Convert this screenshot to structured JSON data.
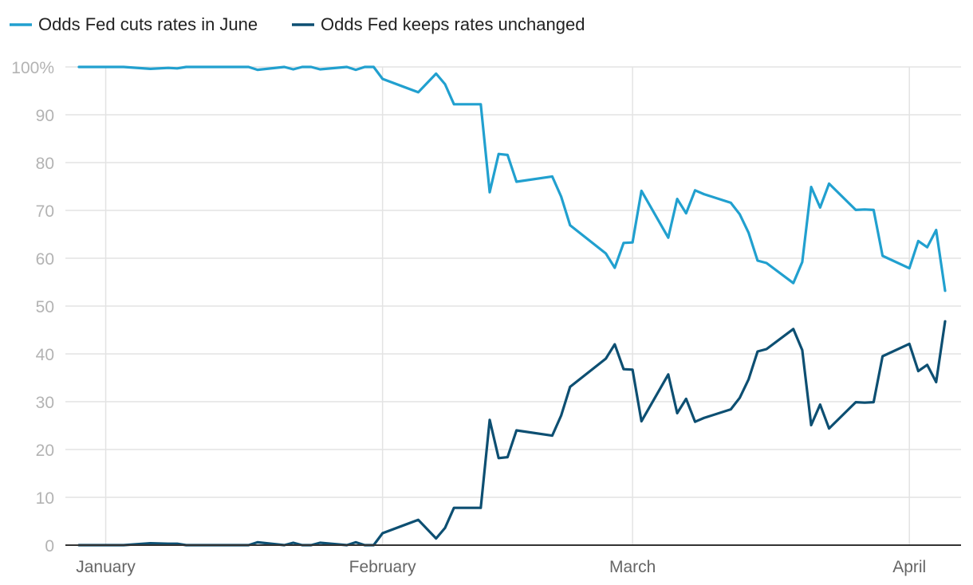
{
  "chart_data": {
    "type": "line",
    "title": "",
    "xlabel": "",
    "ylabel": "",
    "ylim": [
      0,
      100
    ],
    "y_ticks": [
      {
        "value": 100,
        "label": "100%"
      },
      {
        "value": 90,
        "label": "90"
      },
      {
        "value": 80,
        "label": "80"
      },
      {
        "value": 70,
        "label": "70"
      },
      {
        "value": 60,
        "label": "60"
      },
      {
        "value": 50,
        "label": "50"
      },
      {
        "value": 40,
        "label": "40"
      },
      {
        "value": 30,
        "label": "30"
      },
      {
        "value": 20,
        "label": "20"
      },
      {
        "value": 10,
        "label": "10"
      },
      {
        "value": 0,
        "label": "0"
      }
    ],
    "x_range": [
      "2024-12-29",
      "2025-04-12"
    ],
    "x_ticks": [
      {
        "date": "2025-01-01",
        "label": "January"
      },
      {
        "date": "2025-02-01",
        "label": "February"
      },
      {
        "date": "2025-03-01",
        "label": "March"
      },
      {
        "date": "2025-04-01",
        "label": "April"
      }
    ],
    "grid": true,
    "legend_position": "top-left",
    "series": [
      {
        "name": "Odds Fed cuts rates in June",
        "color": "#21a0cf",
        "points": [
          [
            "2024-12-29",
            100
          ],
          [
            "2025-01-02",
            100
          ],
          [
            "2025-01-03",
            100
          ],
          [
            "2025-01-06",
            99.6
          ],
          [
            "2025-01-08",
            99.8
          ],
          [
            "2025-01-09",
            99.7
          ],
          [
            "2025-01-10",
            100
          ],
          [
            "2025-01-17",
            100
          ],
          [
            "2025-01-18",
            99.4
          ],
          [
            "2025-01-21",
            100
          ],
          [
            "2025-01-22",
            99.5
          ],
          [
            "2025-01-23",
            100
          ],
          [
            "2025-01-24",
            100
          ],
          [
            "2025-01-25",
            99.5
          ],
          [
            "2025-01-28",
            100
          ],
          [
            "2025-01-29",
            99.4
          ],
          [
            "2025-01-30",
            100
          ],
          [
            "2025-01-31",
            100
          ],
          [
            "2025-02-01",
            97.5
          ],
          [
            "2025-02-05",
            94.7
          ],
          [
            "2025-02-07",
            98.6
          ],
          [
            "2025-02-08",
            96.4
          ],
          [
            "2025-02-09",
            92.2
          ],
          [
            "2025-02-12",
            92.2
          ],
          [
            "2025-02-13",
            73.8
          ],
          [
            "2025-02-14",
            81.8
          ],
          [
            "2025-02-15",
            81.6
          ],
          [
            "2025-02-16",
            76
          ],
          [
            "2025-02-20",
            77.1
          ],
          [
            "2025-02-21",
            72.9
          ],
          [
            "2025-02-22",
            66.9
          ],
          [
            "2025-02-26",
            61
          ],
          [
            "2025-02-27",
            58
          ],
          [
            "2025-02-28",
            63.2
          ],
          [
            "2025-03-01",
            63.3
          ],
          [
            "2025-03-02",
            74.1
          ],
          [
            "2025-03-05",
            64.3
          ],
          [
            "2025-03-06",
            72.4
          ],
          [
            "2025-03-07",
            69.4
          ],
          [
            "2025-03-08",
            74.2
          ],
          [
            "2025-03-09",
            73.4
          ],
          [
            "2025-03-12",
            71.6
          ],
          [
            "2025-03-13",
            69.2
          ],
          [
            "2025-03-14",
            65.3
          ],
          [
            "2025-03-15",
            59.5
          ],
          [
            "2025-03-16",
            59
          ],
          [
            "2025-03-19",
            54.8
          ],
          [
            "2025-03-20",
            59.2
          ],
          [
            "2025-03-21",
            74.9
          ],
          [
            "2025-03-22",
            70.6
          ],
          [
            "2025-03-23",
            75.6
          ],
          [
            "2025-03-26",
            70.1
          ],
          [
            "2025-03-27",
            70.2
          ],
          [
            "2025-03-28",
            70.1
          ],
          [
            "2025-03-29",
            60.5
          ],
          [
            "2025-04-01",
            57.9
          ],
          [
            "2025-04-02",
            63.6
          ],
          [
            "2025-04-03",
            62.3
          ],
          [
            "2025-04-04",
            65.9
          ],
          [
            "2025-04-05",
            53.2
          ]
        ]
      },
      {
        "name": "Odds Fed keeps rates unchanged",
        "color": "#0d4f72",
        "points": [
          [
            "2024-12-29",
            0
          ],
          [
            "2025-01-02",
            0
          ],
          [
            "2025-01-03",
            0
          ],
          [
            "2025-01-06",
            0.4
          ],
          [
            "2025-01-08",
            0.3
          ],
          [
            "2025-01-09",
            0.3
          ],
          [
            "2025-01-10",
            0
          ],
          [
            "2025-01-17",
            0
          ],
          [
            "2025-01-18",
            0.6
          ],
          [
            "2025-01-21",
            0
          ],
          [
            "2025-01-22",
            0.5
          ],
          [
            "2025-01-23",
            0
          ],
          [
            "2025-01-24",
            0
          ],
          [
            "2025-01-25",
            0.5
          ],
          [
            "2025-01-28",
            0
          ],
          [
            "2025-01-29",
            0.6
          ],
          [
            "2025-01-30",
            0
          ],
          [
            "2025-01-31",
            0
          ],
          [
            "2025-02-01",
            2.5
          ],
          [
            "2025-02-05",
            5.3
          ],
          [
            "2025-02-07",
            1.4
          ],
          [
            "2025-02-08",
            3.6
          ],
          [
            "2025-02-09",
            7.8
          ],
          [
            "2025-02-12",
            7.8
          ],
          [
            "2025-02-13",
            26.2
          ],
          [
            "2025-02-14",
            18.2
          ],
          [
            "2025-02-15",
            18.4
          ],
          [
            "2025-02-16",
            24
          ],
          [
            "2025-02-20",
            22.9
          ],
          [
            "2025-02-21",
            27.1
          ],
          [
            "2025-02-22",
            33.1
          ],
          [
            "2025-02-26",
            39
          ],
          [
            "2025-02-27",
            42
          ],
          [
            "2025-02-28",
            36.8
          ],
          [
            "2025-03-01",
            36.7
          ],
          [
            "2025-03-02",
            25.9
          ],
          [
            "2025-03-05",
            35.7
          ],
          [
            "2025-03-06",
            27.6
          ],
          [
            "2025-03-07",
            30.6
          ],
          [
            "2025-03-08",
            25.8
          ],
          [
            "2025-03-09",
            26.6
          ],
          [
            "2025-03-12",
            28.4
          ],
          [
            "2025-03-13",
            30.8
          ],
          [
            "2025-03-14",
            34.7
          ],
          [
            "2025-03-15",
            40.5
          ],
          [
            "2025-03-16",
            41
          ],
          [
            "2025-03-19",
            45.2
          ],
          [
            "2025-03-20",
            40.8
          ],
          [
            "2025-03-21",
            25.1
          ],
          [
            "2025-03-22",
            29.4
          ],
          [
            "2025-03-23",
            24.4
          ],
          [
            "2025-03-26",
            29.9
          ],
          [
            "2025-03-27",
            29.8
          ],
          [
            "2025-03-28",
            29.9
          ],
          [
            "2025-03-29",
            39.5
          ],
          [
            "2025-04-01",
            42.1
          ],
          [
            "2025-04-02",
            36.4
          ],
          [
            "2025-04-03",
            37.7
          ],
          [
            "2025-04-04",
            34.1
          ],
          [
            "2025-04-05",
            46.8
          ]
        ]
      }
    ]
  }
}
